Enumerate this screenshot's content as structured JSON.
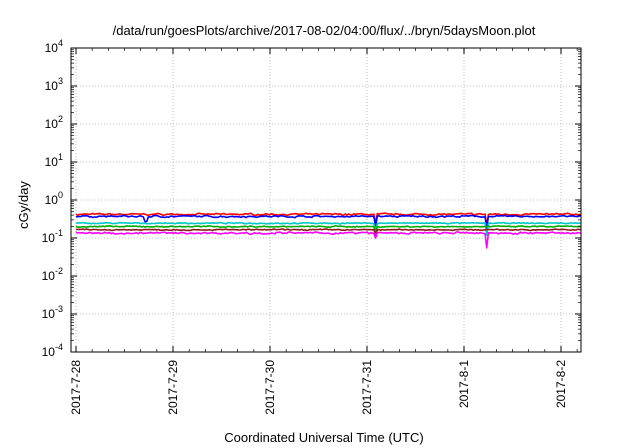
{
  "chart_data": {
    "type": "line",
    "title": "/data/run/goesPlots/archive/2017-08-02/04:00/flux/../bryn/5daysMoon.plot",
    "xlabel": "Coordinated Universal Time (UTC)",
    "ylabel": "cGy/day",
    "yscale": "log",
    "ylim": [
      0.0001,
      10000
    ],
    "xlim": [
      "2017-07-28 00:00",
      "2017-08-02 04:00"
    ],
    "grid": true,
    "x_ticks": [
      "2017-7-28",
      "2017-7-29",
      "2017-7-30",
      "2017-7-31",
      "2017-8-1",
      "2017-8-2"
    ],
    "y_ticks": [
      {
        "base": "10",
        "exp": "-4"
      },
      {
        "base": "10",
        "exp": "-3"
      },
      {
        "base": "10",
        "exp": "-2"
      },
      {
        "base": "10",
        "exp": "-1"
      },
      {
        "base": "10",
        "exp": "0"
      },
      {
        "base": "10",
        "exp": "1"
      },
      {
        "base": "10",
        "exp": "2"
      },
      {
        "base": "10",
        "exp": "3"
      },
      {
        "base": "10",
        "exp": "4"
      }
    ],
    "series": [
      {
        "color": "#ff0000",
        "level": 0.42,
        "noise": 0.06,
        "dips": [
          {
            "x": 3.09,
            "v": 0.24
          },
          {
            "x": 4.23,
            "v": 0.21
          }
        ]
      },
      {
        "color": "#0000ff",
        "level": 0.37,
        "noise": 0.06,
        "dips": [
          {
            "x": 0.72,
            "v": 0.27
          },
          {
            "x": 3.09,
            "v": 0.2
          },
          {
            "x": 4.23,
            "v": 0.18
          }
        ]
      },
      {
        "color": "#00c8c8",
        "level": 0.245,
        "noise": 0.04,
        "dips": [
          {
            "x": 3.09,
            "v": 0.16
          },
          {
            "x": 4.23,
            "v": 0.12
          }
        ]
      },
      {
        "color": "#00aa00",
        "level": 0.2,
        "noise": 0.04,
        "dips": [
          {
            "x": 3.09,
            "v": 0.14
          }
        ]
      },
      {
        "color": "#8b1a1a",
        "level": 0.165,
        "noise": 0.04,
        "dips": [
          {
            "x": 3.09,
            "v": 0.12
          }
        ]
      },
      {
        "color": "#ff00ff",
        "level": 0.135,
        "noise": 0.07,
        "dips": [
          {
            "x": 4.23,
            "v": 0.055
          },
          {
            "x": 3.09,
            "v": 0.1
          }
        ]
      }
    ]
  }
}
